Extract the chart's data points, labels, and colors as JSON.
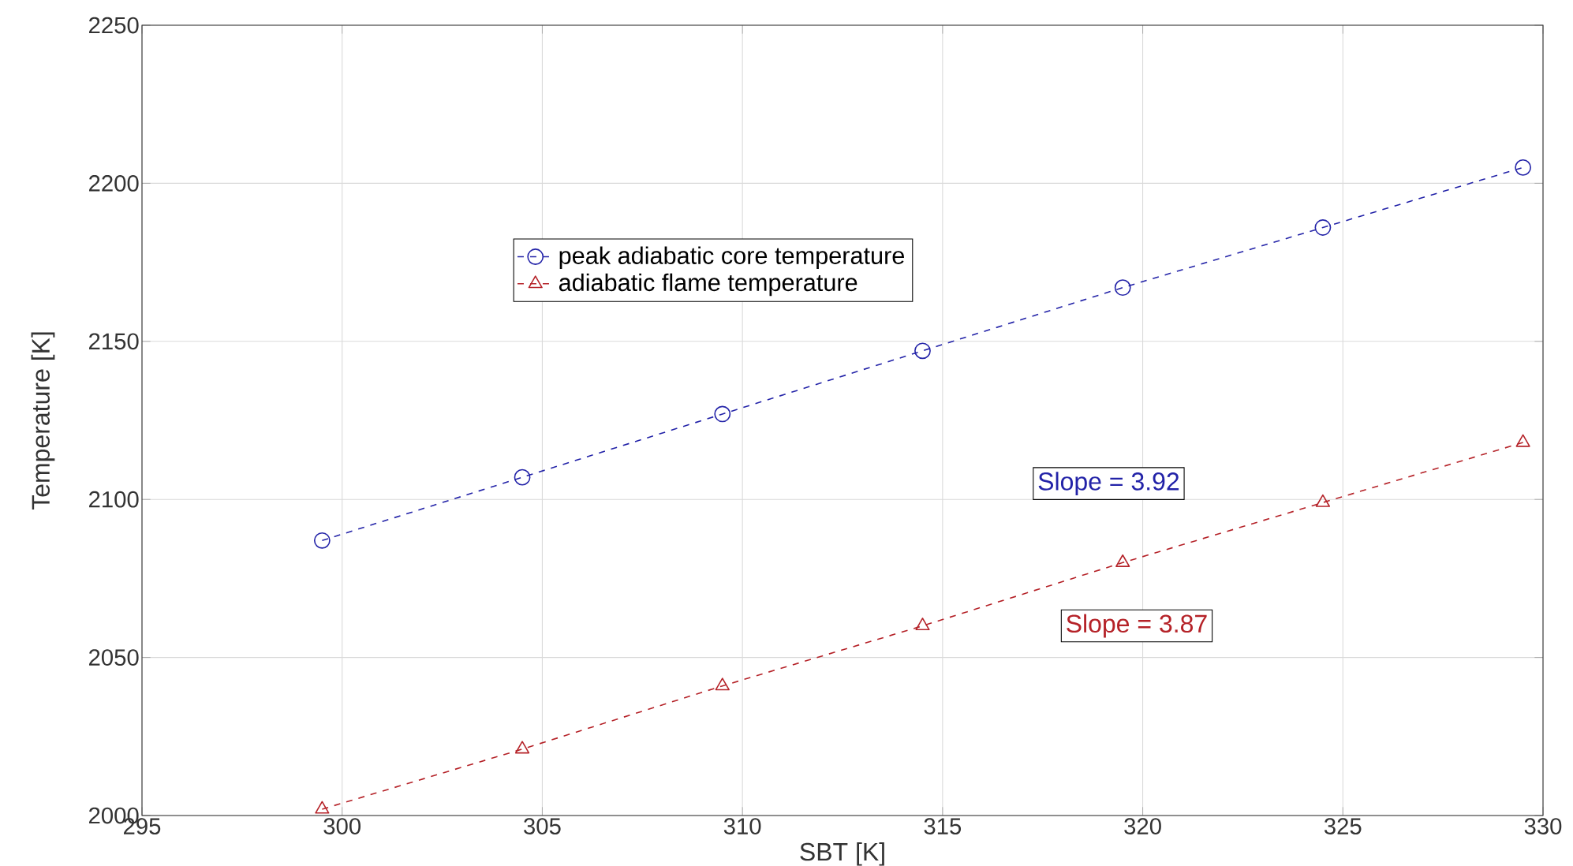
{
  "chart_data": {
    "type": "line",
    "xlabel": "SBT [K]",
    "ylabel": "Temperature [K]",
    "xlim": [
      295,
      330
    ],
    "xticks": [
      295,
      300,
      305,
      310,
      315,
      320,
      325,
      330
    ],
    "ylim": [
      2000,
      2250
    ],
    "yticks": [
      2000,
      2050,
      2100,
      2150,
      2200,
      2250
    ],
    "grid": true,
    "legend": "top left",
    "line_style": "dashed",
    "x": [
      299.5,
      304.5,
      309.5,
      314.5,
      319.5,
      324.5,
      329.5
    ],
    "series": [
      {
        "name": "peak adiabatic core temperature",
        "color": "#2323a8",
        "marker": "circle",
        "values": [
          2087,
          2107,
          2127,
          2147,
          2167,
          2186,
          2205
        ]
      },
      {
        "name": "adiabatic flame temperature",
        "color": "#b52228",
        "marker": "triangle",
        "values": [
          2002,
          2021,
          2041,
          2060,
          2080,
          2099,
          2118
        ]
      }
    ],
    "annotations": [
      "Slope = 3.92",
      "Slope = 3.87"
    ]
  }
}
